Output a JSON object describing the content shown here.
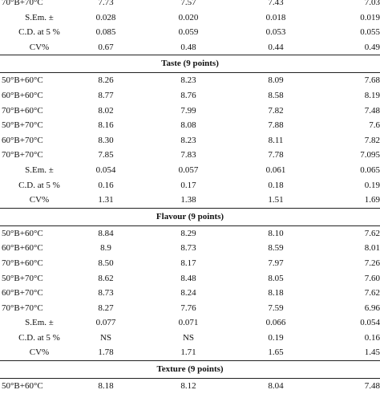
{
  "top": [
    {
      "label": "70°B+70°C",
      "values": [
        "7.73",
        "7.57",
        "7.43",
        "7.03"
      ]
    },
    {
      "label": "S.Em. ±",
      "values": [
        "0.028",
        "0.020",
        "0.018",
        "0.019"
      ]
    },
    {
      "label": "C.D. at 5 %",
      "values": [
        "0.085",
        "0.059",
        "0.053",
        "0.055"
      ]
    },
    {
      "label": "CV%",
      "values": [
        "0.67",
        "0.48",
        "0.44",
        "0.49"
      ]
    }
  ],
  "sections": [
    {
      "title": "Taste (9 points)",
      "rows": [
        {
          "label": "50°B+60°C",
          "values": [
            "8.26",
            "8.23",
            "8.09",
            "7.68"
          ]
        },
        {
          "label": "60°B+60°C",
          "values": [
            "8.77",
            "8.76",
            "8.58",
            "8.19"
          ]
        },
        {
          "label": "70°B+60°C",
          "values": [
            "8.02",
            "7.99",
            "7.82",
            "7.48"
          ]
        },
        {
          "label": "50°B+70°C",
          "values": [
            "8.16",
            "8.08",
            "7.88",
            "7.6"
          ]
        },
        {
          "label": "60°B+70°C",
          "values": [
            "8.30",
            "8.23",
            "8.11",
            "7.82"
          ]
        },
        {
          "label": "70°B+70°C",
          "values": [
            "7.85",
            "7.83",
            "7.78",
            "7.095"
          ]
        },
        {
          "label": "S.Em. ±",
          "values": [
            "0.054",
            "0.057",
            "0.061",
            "0.065"
          ]
        },
        {
          "label": "C.D. at 5 %",
          "values": [
            "0.16",
            "0.17",
            "0.18",
            "0.19"
          ]
        },
        {
          "label": "CV%",
          "values": [
            "1.31",
            "1.38",
            "1.51",
            "1.69"
          ]
        }
      ]
    },
    {
      "title": "Flavour (9 points)",
      "rows": [
        {
          "label": "50°B+60°C",
          "values": [
            "8.84",
            "8.29",
            "8.10",
            "7.62"
          ]
        },
        {
          "label": "60°B+60°C",
          "values": [
            "8.9",
            "8.73",
            "8.59",
            "8.01"
          ]
        },
        {
          "label": "70°B+60°C",
          "values": [
            "8.50",
            "8.17",
            "7.97",
            "7.26"
          ]
        },
        {
          "label": "50°B+70°C",
          "values": [
            "8.62",
            "8.48",
            "8.05",
            "7.60"
          ]
        },
        {
          "label": "60°B+70°C",
          "values": [
            "8.73",
            "8.24",
            "8.18",
            "7.62"
          ]
        },
        {
          "label": "70°B+70°C",
          "values": [
            "8.27",
            "7.76",
            "7.59",
            "6.96"
          ]
        },
        {
          "label": "S.Em. ±",
          "values": [
            "0.077",
            "0.071",
            "0.066",
            "0.054"
          ]
        },
        {
          "label": "C.D. at 5 %",
          "values": [
            "NS",
            "NS",
            "0.19",
            "0.16"
          ]
        },
        {
          "label": "CV%",
          "values": [
            "1.78",
            "1.71",
            "1.65",
            "1.45"
          ]
        }
      ]
    },
    {
      "title": "Texture (9 points)",
      "rows": [
        {
          "label": "50°B+60°C",
          "values": [
            "8.18",
            "8.12",
            "8.04",
            "7.48"
          ]
        }
      ]
    }
  ]
}
